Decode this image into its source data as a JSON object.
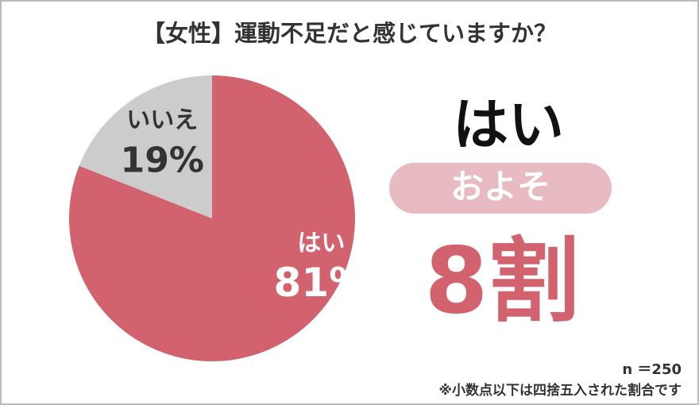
{
  "chart_data": {
    "type": "pie",
    "title": "【女性】運動不足だと感じていますか？",
    "categories": [
      "はい",
      "いいえ"
    ],
    "values": [
      81,
      19
    ],
    "value_labels": [
      "81%",
      "19%"
    ],
    "colors": [
      "#d2626e",
      "#cccccc"
    ],
    "label_colors": [
      "#ffffff",
      "#333333"
    ],
    "start_angle": 0,
    "direction": "clockwise",
    "annotations": {
      "answer": "はい",
      "approx": "およそ",
      "ratio": "8割",
      "sample": "n ＝250",
      "note": "※小数点以下は四捨五入された割合です"
    }
  }
}
